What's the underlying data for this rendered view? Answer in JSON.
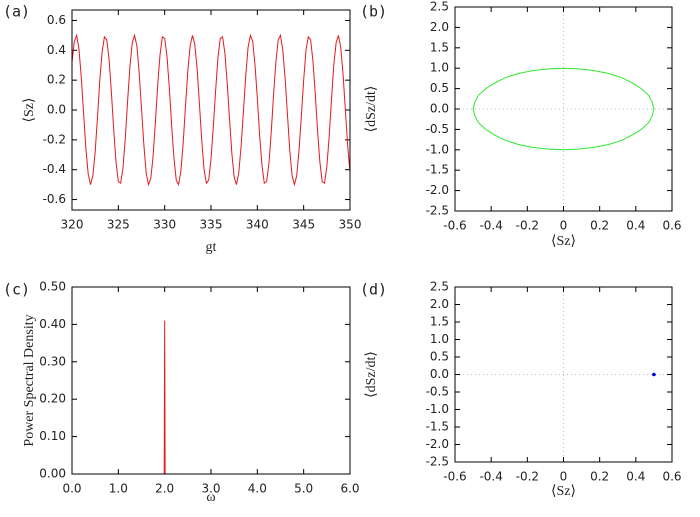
{
  "chart_data": [
    {
      "type": "line",
      "panel_label": "(a)",
      "xlabel": "gt",
      "ylabel": "⟨Sz⟩",
      "xlim": [
        320,
        350
      ],
      "ylim": [
        -0.67,
        0.67
      ],
      "xticks": [
        320,
        325,
        330,
        335,
        340,
        345,
        350
      ],
      "yticks": [
        -0.6,
        -0.4,
        -0.2,
        {
          "value": 0,
          "label": "0.0"
        },
        0.2,
        0.4,
        0.6
      ],
      "x": [
        320,
        320.25,
        320.5,
        320.75,
        321,
        321.25,
        321.5,
        321.75,
        322,
        322.25,
        322.5,
        322.75,
        323,
        323.25,
        323.5,
        323.75,
        324,
        324.25,
        324.5,
        324.75,
        325,
        325.25,
        325.5,
        325.75,
        326,
        326.25,
        326.5,
        326.75,
        327,
        327.25,
        327.5,
        327.75,
        328,
        328.25,
        328.5,
        328.75,
        329,
        329.25,
        329.5,
        329.75,
        330,
        330.25,
        330.5,
        330.75,
        331,
        331.25,
        331.5,
        331.75,
        332,
        332.25,
        332.5,
        332.75,
        333,
        333.25,
        333.5,
        333.75,
        334,
        334.25,
        334.5,
        334.75,
        335,
        335.25,
        335.5,
        335.75,
        336,
        336.25,
        336.5,
        336.75,
        337,
        337.25,
        337.5,
        337.75,
        338,
        338.25,
        338.5,
        338.75,
        339,
        339.25,
        339.5,
        339.75,
        340,
        340.25,
        340.5,
        340.75,
        341,
        341.25,
        341.5,
        341.75,
        342,
        342.25,
        342.5,
        342.75,
        343,
        343.25,
        343.5,
        343.75,
        344,
        344.25,
        344.5,
        344.75,
        345,
        345.25,
        345.5,
        345.75,
        346,
        346.25,
        346.5,
        346.75,
        347,
        347.25,
        347.5,
        347.75,
        348,
        348.25,
        348.5,
        348.75,
        349,
        349.25,
        349.5,
        349.75,
        350
      ],
      "series": [
        {
          "color": "#e41a1c",
          "values": [
            0.32,
            0.46,
            0.5,
            0.41,
            0.22,
            -0.02,
            -0.26,
            -0.43,
            -0.5,
            -0.44,
            -0.28,
            -0.05,
            0.2,
            0.39,
            0.49,
            0.47,
            0.34,
            0.12,
            -0.13,
            -0.35,
            -0.48,
            -0.49,
            -0.39,
            -0.19,
            0.06,
            0.29,
            0.45,
            0.5,
            0.43,
            0.25,
            0.01,
            -0.23,
            -0.42,
            -0.5,
            -0.46,
            -0.31,
            -0.08,
            0.17,
            0.37,
            0.49,
            0.48,
            0.36,
            0.15,
            -0.1,
            -0.32,
            -0.47,
            -0.5,
            -0.41,
            -0.22,
            0.03,
            0.26,
            0.43,
            0.5,
            0.44,
            0.28,
            0.04,
            -0.2,
            -0.4,
            -0.49,
            -0.47,
            -0.33,
            -0.11,
            0.13,
            0.35,
            0.48,
            0.49,
            0.38,
            0.18,
            -0.06,
            -0.29,
            -0.45,
            -0.5,
            -0.42,
            -0.24,
            -0.01,
            0.23,
            0.42,
            0.5,
            0.46,
            0.3,
            0.08,
            -0.17,
            -0.37,
            -0.49,
            -0.48,
            -0.36,
            -0.15,
            0.1,
            0.32,
            0.47,
            0.5,
            0.4,
            0.21,
            -0.03,
            -0.27,
            -0.44,
            -0.5,
            -0.44,
            -0.27,
            -0.04,
            0.2,
            0.4,
            0.49,
            0.47,
            0.33,
            0.11,
            -0.14,
            -0.35,
            -0.48,
            -0.49,
            -0.38,
            -0.18,
            0.07,
            0.3,
            0.45,
            0.5,
            0.42,
            0.24,
            0,
            -0.24,
            -0.42
          ]
        }
      ]
    },
    {
      "type": "line",
      "panel_label": "(b)",
      "xlabel": "⟨Sz⟩",
      "ylabel": "⟨dSz/dt⟩",
      "xlim": [
        -0.6,
        0.6
      ],
      "ylim": [
        -2.5,
        2.5
      ],
      "zero_lines": true,
      "xticks": [
        -0.6,
        -0.4,
        -0.2,
        0,
        0.2,
        0.4,
        0.6
      ],
      "yticks": [
        -2.5,
        {
          "value": -2,
          "label": "-2.0"
        },
        -1.5,
        {
          "value": -1,
          "label": "-1.0"
        },
        -0.5,
        {
          "value": 0,
          "label": "0.0"
        },
        0.5,
        {
          "value": 1,
          "label": "1.0"
        },
        1.5,
        {
          "value": 2,
          "label": "2.0"
        },
        2.5
      ],
      "x": [
        0.5,
        0.49,
        0.47,
        0.43,
        0.38,
        0.32,
        0.25,
        0.17,
        0.09,
        0,
        -0.09,
        -0.17,
        -0.25,
        -0.32,
        -0.38,
        -0.43,
        -0.47,
        -0.49,
        -0.5,
        -0.49,
        -0.47,
        -0.43,
        -0.38,
        -0.32,
        -0.25,
        -0.17,
        -0.09,
        0,
        0.09,
        0.17,
        0.25,
        0.32,
        0.38,
        0.43,
        0.47,
        0.49,
        0.5
      ],
      "series": [
        {
          "color": "#2ee82e",
          "values": [
            0,
            0.17,
            0.34,
            0.5,
            0.64,
            0.77,
            0.87,
            0.94,
            0.98,
            1,
            0.98,
            0.94,
            0.87,
            0.77,
            0.64,
            0.5,
            0.34,
            0.17,
            0,
            -0.17,
            -0.34,
            -0.5,
            -0.64,
            -0.77,
            -0.87,
            -0.94,
            -0.98,
            -1,
            -0.98,
            -0.94,
            -0.87,
            -0.77,
            -0.64,
            -0.5,
            -0.34,
            -0.17,
            0
          ]
        }
      ]
    },
    {
      "type": "line",
      "panel_label": "(c)",
      "xlabel": "ω",
      "ylabel": "Power Spectral Density",
      "xlim": [
        0,
        6
      ],
      "ylim": [
        0,
        0.5
      ],
      "xticks": [
        {
          "value": 0,
          "label": "0.0"
        },
        {
          "value": 1,
          "label": "1.0"
        },
        {
          "value": 2,
          "label": "2.0"
        },
        {
          "value": 3,
          "label": "3.0"
        },
        {
          "value": 4,
          "label": "4.0"
        },
        {
          "value": 5,
          "label": "5.0"
        },
        {
          "value": 6,
          "label": "6.0"
        }
      ],
      "yticks": [
        {
          "value": 0,
          "label": "0.00"
        },
        {
          "value": 0.1,
          "label": "0.10"
        },
        {
          "value": 0.2,
          "label": "0.20"
        },
        {
          "value": 0.3,
          "label": "0.30"
        },
        {
          "value": 0.4,
          "label": "0.40"
        },
        {
          "value": 0.5,
          "label": "0.50"
        }
      ],
      "x": [
        1.99,
        2.0,
        2.01
      ],
      "series": [
        {
          "color": "#e41a1c",
          "values": [
            0,
            0.41,
            0
          ]
        }
      ]
    },
    {
      "type": "scatter",
      "panel_label": "(d)",
      "xlabel": "⟨Sz⟩",
      "ylabel": "⟨dSz/dt⟩",
      "xlim": [
        -0.6,
        0.6
      ],
      "ylim": [
        -2.5,
        2.5
      ],
      "zero_lines": true,
      "xticks": [
        -0.6,
        -0.4,
        -0.2,
        0,
        0.2,
        0.4,
        0.6
      ],
      "yticks": [
        -2.5,
        {
          "value": -2,
          "label": "-2.0"
        },
        -1.5,
        {
          "value": -1,
          "label": "-1.0"
        },
        -0.5,
        {
          "value": 0,
          "label": "0.0"
        },
        0.5,
        {
          "value": 1,
          "label": "1.0"
        },
        1.5,
        {
          "value": 2,
          "label": "2.0"
        },
        2.5
      ],
      "x": [
        0.5
      ],
      "series": [
        {
          "color": "#0000ee",
          "values": [
            0
          ]
        }
      ]
    }
  ]
}
